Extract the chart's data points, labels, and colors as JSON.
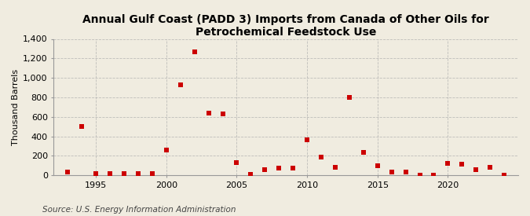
{
  "title": "Annual Gulf Coast (PADD 3) Imports from Canada of Other Oils for Petrochemical Feedstock Use",
  "ylabel": "Thousand Barrels",
  "source": "Source: U.S. Energy Information Administration",
  "years": [
    1993,
    1994,
    1995,
    1996,
    1997,
    1998,
    1999,
    2000,
    2001,
    2002,
    2003,
    2004,
    2005,
    2006,
    2007,
    2008,
    2009,
    2010,
    2011,
    2012,
    2013,
    2014,
    2015,
    2016,
    2017,
    2018,
    2019,
    2020,
    2021,
    2022,
    2023,
    2024
  ],
  "values": [
    30,
    500,
    20,
    20,
    20,
    20,
    20,
    260,
    930,
    1270,
    640,
    630,
    130,
    10,
    60,
    70,
    75,
    360,
    190,
    80,
    800,
    235,
    100,
    35,
    35,
    0,
    0,
    120,
    110,
    55,
    80,
    0
  ],
  "marker_color": "#cc0000",
  "marker_size": 4,
  "bg_color": "#f0ece0",
  "plot_bg_color": "#f0ece0",
  "grid_color": "#aaaaaa",
  "ylim": [
    0,
    1400
  ],
  "yticks": [
    0,
    200,
    400,
    600,
    800,
    1000,
    1200,
    1400
  ],
  "ytick_labels": [
    "0",
    "200",
    "400",
    "600",
    "800",
    "1,000",
    "1,200",
    "1,400"
  ],
  "xlim": [
    1992,
    2025
  ],
  "xticks": [
    1995,
    2000,
    2005,
    2010,
    2015,
    2020
  ],
  "title_fontsize": 10,
  "axis_fontsize": 8,
  "source_fontsize": 7.5
}
